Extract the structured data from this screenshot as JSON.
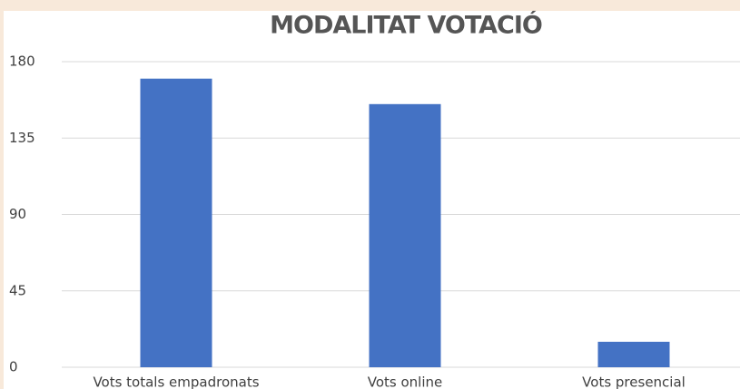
{
  "chart_data": {
    "type": "bar",
    "title": "MODALITAT VOTACIÓ",
    "categories": [
      "Vots totals empadronats",
      "Vots online",
      "Vots presencial"
    ],
    "values": [
      170,
      155,
      15
    ],
    "color": "#4472c4",
    "ylim": [
      0,
      180
    ],
    "yticks": [
      0,
      45,
      90,
      135,
      180
    ],
    "grid": true
  }
}
